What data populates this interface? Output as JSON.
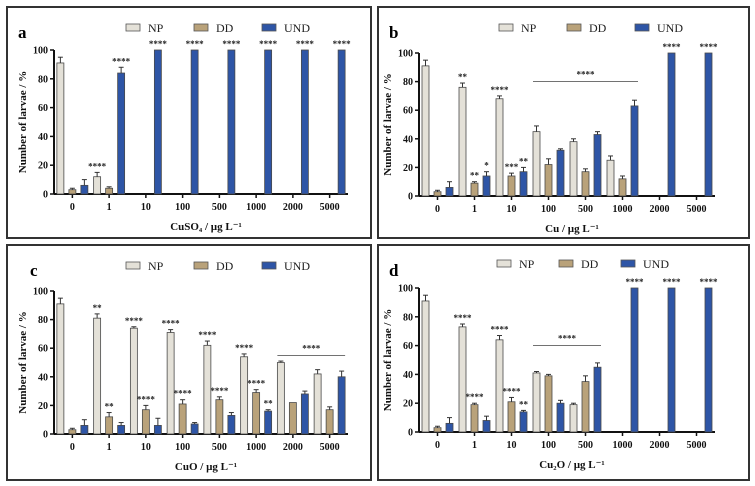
{
  "colors": {
    "NP": "#e4e1d8",
    "DD": "#b9a27a",
    "UND": "#2e55a6",
    "axis": "#111111"
  },
  "chart_data": [
    {
      "panel_label": "a",
      "type": "bar",
      "title": "",
      "xlabel": "CuSO₄ / µg L⁻¹",
      "ylabel": "Number of larvae / %",
      "ylim": [
        0,
        100
      ],
      "yticks": [
        0,
        20,
        40,
        60,
        80,
        100
      ],
      "grid": false,
      "legend": {
        "position": "top",
        "entries": [
          "NP",
          "DD",
          "UND"
        ]
      },
      "categories": [
        "0",
        "1",
        "10",
        "100",
        "500",
        "1000",
        "2000",
        "5000"
      ],
      "series": [
        {
          "name": "NP",
          "values": [
            91,
            12,
            0,
            0,
            0,
            0,
            0,
            0
          ],
          "errors": [
            4,
            3,
            0,
            0,
            0,
            0,
            0,
            0
          ]
        },
        {
          "name": "DD",
          "values": [
            3,
            4,
            0,
            0,
            0,
            0,
            0,
            0
          ],
          "errors": [
            1,
            1,
            0,
            0,
            0,
            0,
            0,
            0
          ]
        },
        {
          "name": "UND",
          "values": [
            6,
            84,
            100,
            100,
            100,
            100,
            100,
            100
          ],
          "errors": [
            4,
            4,
            0,
            0,
            0,
            0,
            0,
            0
          ]
        }
      ],
      "annotations": [
        {
          "category": "1",
          "series": "NP",
          "text": "****"
        },
        {
          "category": "1",
          "series": "UND",
          "text": "****"
        },
        {
          "category": "10",
          "series": "UND",
          "text": "****"
        },
        {
          "category": "100",
          "series": "UND",
          "text": "****"
        },
        {
          "category": "500",
          "series": "UND",
          "text": "****"
        },
        {
          "category": "1000",
          "series": "UND",
          "text": "****"
        },
        {
          "category": "2000",
          "series": "UND",
          "text": "****"
        },
        {
          "category": "5000",
          "series": "UND",
          "text": "****"
        }
      ],
      "brackets": []
    },
    {
      "panel_label": "b",
      "type": "bar",
      "title": "",
      "xlabel": "Cu / µg L⁻¹",
      "ylabel": "Number of larvae / %",
      "ylim": [
        0,
        100
      ],
      "yticks": [
        0,
        20,
        40,
        60,
        80,
        100
      ],
      "grid": false,
      "legend": {
        "position": "top",
        "entries": [
          "NP",
          "DD",
          "UND"
        ]
      },
      "categories": [
        "0",
        "1",
        "10",
        "100",
        "500",
        "1000",
        "2000",
        "5000"
      ],
      "series": [
        {
          "name": "NP",
          "values": [
            91,
            76,
            68,
            45,
            38,
            25,
            0,
            0
          ],
          "errors": [
            4,
            3,
            2,
            4,
            2,
            3,
            0,
            0
          ]
        },
        {
          "name": "DD",
          "values": [
            3,
            9,
            14,
            22,
            17,
            12,
            0,
            0
          ],
          "errors": [
            1,
            1,
            2,
            4,
            2,
            2,
            0,
            0
          ]
        },
        {
          "name": "UND",
          "values": [
            6,
            14,
            17,
            32,
            43,
            63,
            100,
            100
          ],
          "errors": [
            4,
            3,
            3,
            1,
            2,
            4,
            0,
            0
          ]
        }
      ],
      "annotations": [
        {
          "category": "1",
          "series": "NP",
          "text": "**"
        },
        {
          "category": "1",
          "series": "DD",
          "text": "**"
        },
        {
          "category": "1",
          "series": "UND",
          "text": "*"
        },
        {
          "category": "10",
          "series": "NP",
          "text": "****"
        },
        {
          "category": "10",
          "series": "DD",
          "text": "***"
        },
        {
          "category": "10",
          "series": "UND",
          "text": "**"
        },
        {
          "category": "2000",
          "series": "UND",
          "text": "****"
        },
        {
          "category": "5000",
          "series": "UND",
          "text": "****"
        }
      ],
      "brackets": [
        {
          "from": "100",
          "to": "1000",
          "y": 80,
          "text": "****"
        }
      ]
    },
    {
      "panel_label": "c",
      "type": "bar",
      "title": "",
      "xlabel": "CuO / µg L⁻¹",
      "ylabel": "Number of larvae / %",
      "ylim": [
        0,
        100
      ],
      "yticks": [
        0,
        20,
        40,
        60,
        80,
        100
      ],
      "grid": false,
      "legend": {
        "position": "top",
        "entries": [
          "NP",
          "DD",
          "UND"
        ]
      },
      "categories": [
        "0",
        "1",
        "10",
        "100",
        "500",
        "1000",
        "2000",
        "5000"
      ],
      "series": [
        {
          "name": "NP",
          "values": [
            91,
            81,
            74,
            71,
            62,
            54,
            50,
            42
          ],
          "errors": [
            4,
            3,
            1,
            2,
            3,
            2,
            1,
            3
          ]
        },
        {
          "name": "DD",
          "values": [
            3,
            12,
            17,
            21,
            24,
            29,
            22,
            17
          ],
          "errors": [
            1,
            3,
            3,
            3,
            2,
            2,
            0,
            2
          ]
        },
        {
          "name": "UND",
          "values": [
            6,
            6,
            6,
            7,
            13,
            16,
            28,
            40
          ],
          "errors": [
            4,
            2,
            5,
            1,
            2,
            1,
            2,
            4
          ]
        }
      ],
      "annotations": [
        {
          "category": "1",
          "series": "NP",
          "text": "**"
        },
        {
          "category": "1",
          "series": "DD",
          "text": "**"
        },
        {
          "category": "10",
          "series": "NP",
          "text": "****"
        },
        {
          "category": "10",
          "series": "DD",
          "text": "****"
        },
        {
          "category": "100",
          "series": "NP",
          "text": "****"
        },
        {
          "category": "100",
          "series": "DD",
          "text": "****"
        },
        {
          "category": "500",
          "series": "NP",
          "text": "****"
        },
        {
          "category": "500",
          "series": "DD",
          "text": "****"
        },
        {
          "category": "1000",
          "series": "NP",
          "text": "****"
        },
        {
          "category": "1000",
          "series": "DD",
          "text": "****"
        },
        {
          "category": "1000",
          "series": "UND",
          "text": "**"
        }
      ],
      "brackets": [
        {
          "from": "2000",
          "to": "5000",
          "y": 55,
          "text": "****"
        }
      ]
    },
    {
      "panel_label": "d",
      "type": "bar",
      "title": "",
      "xlabel": "Cu₂O / µg L⁻¹",
      "ylabel": "Number of larvae / %",
      "ylim": [
        0,
        100
      ],
      "yticks": [
        0,
        20,
        40,
        60,
        80,
        100
      ],
      "grid": false,
      "legend": {
        "position": "top",
        "entries": [
          "NP",
          "DD",
          "UND"
        ]
      },
      "categories": [
        "0",
        "1",
        "10",
        "100",
        "500",
        "1000",
        "2000",
        "5000"
      ],
      "series": [
        {
          "name": "NP",
          "values": [
            91,
            73,
            64,
            41,
            19,
            0,
            0,
            0
          ],
          "errors": [
            4,
            2,
            3,
            1,
            1,
            0,
            0,
            0
          ]
        },
        {
          "name": "DD",
          "values": [
            3,
            19,
            21,
            39,
            35,
            0,
            0,
            0
          ],
          "errors": [
            1,
            1,
            3,
            1,
            4,
            0,
            0,
            0
          ]
        },
        {
          "name": "UND",
          "values": [
            6,
            8,
            14,
            20,
            45,
            100,
            100,
            100
          ],
          "errors": [
            4,
            3,
            1,
            2,
            3,
            0,
            0,
            0
          ]
        }
      ],
      "annotations": [
        {
          "category": "1",
          "series": "NP",
          "text": "****"
        },
        {
          "category": "1",
          "series": "DD",
          "text": "****"
        },
        {
          "category": "10",
          "series": "NP",
          "text": "****"
        },
        {
          "category": "10",
          "series": "DD",
          "text": "****"
        },
        {
          "category": "10",
          "series": "UND",
          "text": "**"
        },
        {
          "category": "1000",
          "series": "UND",
          "text": "****"
        },
        {
          "category": "2000",
          "series": "UND",
          "text": "****"
        },
        {
          "category": "5000",
          "series": "UND",
          "text": "****"
        }
      ],
      "brackets": [
        {
          "from": "100",
          "to": "500",
          "y": 60,
          "text": "****"
        }
      ]
    }
  ]
}
